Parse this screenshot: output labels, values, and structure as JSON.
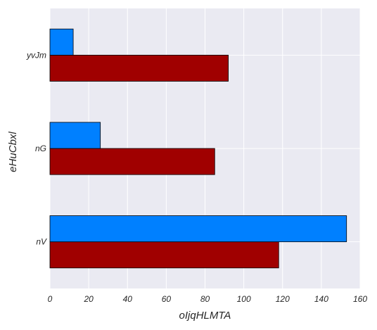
{
  "chart_data": {
    "type": "bar",
    "orientation": "horizontal",
    "categories": [
      "nV",
      "nG",
      "yvJm"
    ],
    "series": [
      {
        "color": "#a00000",
        "values": [
          118,
          85,
          92
        ]
      },
      {
        "color": "#0080ff",
        "values": [
          153,
          26,
          12
        ]
      }
    ],
    "xlabel": "oIjqHLMTA",
    "ylabel": "eHuCbxl",
    "xlim": [
      0,
      160
    ],
    "xticks": [
      "0",
      "20",
      "40",
      "60",
      "80",
      "100",
      "120",
      "140",
      "160"
    ],
    "grid": true,
    "background": "#eaeaf2"
  }
}
